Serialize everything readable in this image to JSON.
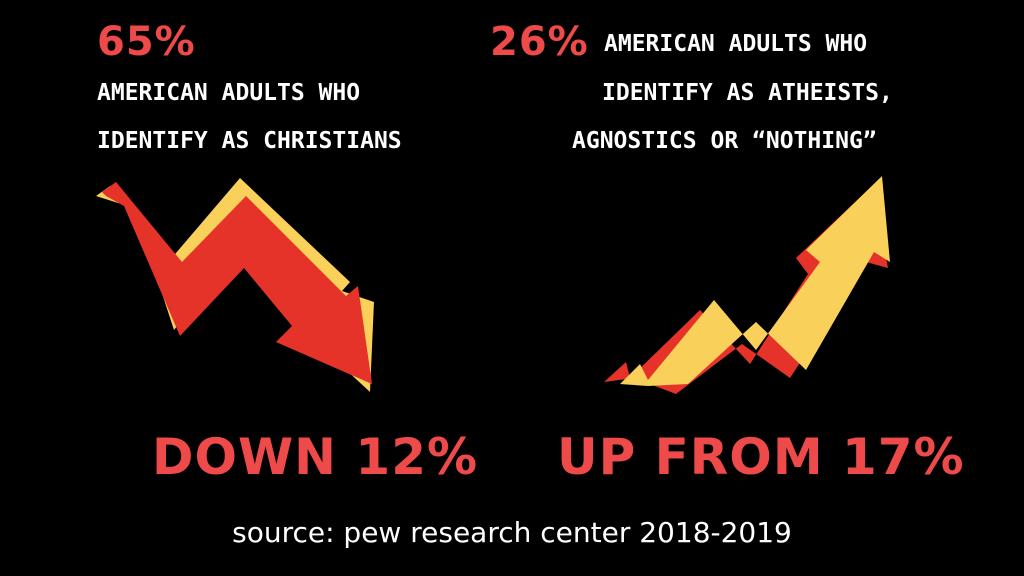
{
  "colors": {
    "background": "#000000",
    "accent_red": "#ee4a4a",
    "arrow_red": "#e6332a",
    "arrow_yellow": "#f8d05a",
    "text_white": "#ffffff"
  },
  "left": {
    "percentage": "65%",
    "caption_lines": [
      "AMERICAN ADULTS WHO",
      "IDENTIFY AS CHRISTIANS"
    ],
    "trend_icon": "down-trend-arrow-icon",
    "change_label": "DOWN 12%"
  },
  "right": {
    "percentage": "26%",
    "caption_lines": [
      "AMERICAN ADULTS WHO",
      "IDENTIFY AS  ATHEISTS,",
      "AGNOSTICS OR “NOTHING”"
    ],
    "trend_icon": "up-trend-arrow-icon",
    "change_label": "UP FROM 17%"
  },
  "source": "source: pew research center 2018-2019"
}
